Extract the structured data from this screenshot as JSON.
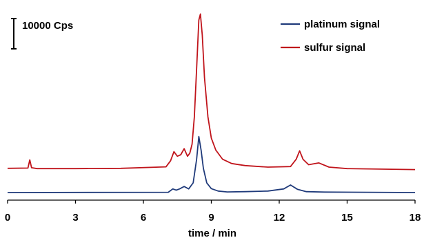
{
  "chart_data": {
    "type": "line",
    "title": "",
    "xlabel": "time / min",
    "ylabel": "",
    "xlim": [
      0,
      18
    ],
    "xticks": [
      0,
      3,
      6,
      9,
      12,
      15,
      18
    ],
    "xtick_labels": [
      "0",
      "3",
      "6",
      "9",
      "12",
      "15",
      "18"
    ],
    "ylim": [
      -2000,
      62000
    ],
    "y_unit": "Cps",
    "scale_bar": {
      "value": 10000,
      "label": "10000 Cps"
    },
    "legend": {
      "placement": "top-right"
    },
    "grid": false,
    "series": [
      {
        "name": "platinum signal",
        "color": "#1f3a7a",
        "x": [
          0,
          7.1,
          7.3,
          7.45,
          7.6,
          7.8,
          8.0,
          8.2,
          8.35,
          8.45,
          8.55,
          8.65,
          8.8,
          9.0,
          9.3,
          9.7,
          10.5,
          11.5,
          12.2,
          12.5,
          12.8,
          13.2,
          14,
          18
        ],
        "y": [
          0,
          100,
          1200,
          800,
          1200,
          2000,
          1200,
          3200,
          11000,
          18500,
          14000,
          8000,
          3200,
          1300,
          500,
          200,
          300,
          500,
          1200,
          2500,
          1100,
          300,
          150,
          0
        ]
      },
      {
        "name": "sulfur signal",
        "color": "#c0141b",
        "x": [
          0,
          0.9,
          0.98,
          1.06,
          1.3,
          3,
          5,
          7,
          7.2,
          7.35,
          7.5,
          7.65,
          7.8,
          7.95,
          8.05,
          8.15,
          8.25,
          8.35,
          8.45,
          8.52,
          8.6,
          8.7,
          8.85,
          9.0,
          9.2,
          9.5,
          9.9,
          10.5,
          11.5,
          12.5,
          12.75,
          12.9,
          13.05,
          13.3,
          13.75,
          14.2,
          15,
          18
        ],
        "y": [
          8000,
          8100,
          10800,
          8200,
          7900,
          7900,
          8000,
          8500,
          10500,
          13500,
          12000,
          12500,
          14500,
          12000,
          13000,
          16000,
          25000,
          41000,
          57000,
          59000,
          52000,
          38000,
          25000,
          18000,
          14000,
          11000,
          9600,
          8900,
          8400,
          8600,
          11000,
          13800,
          11000,
          9200,
          9800,
          8400,
          7900,
          7600
        ]
      }
    ]
  }
}
